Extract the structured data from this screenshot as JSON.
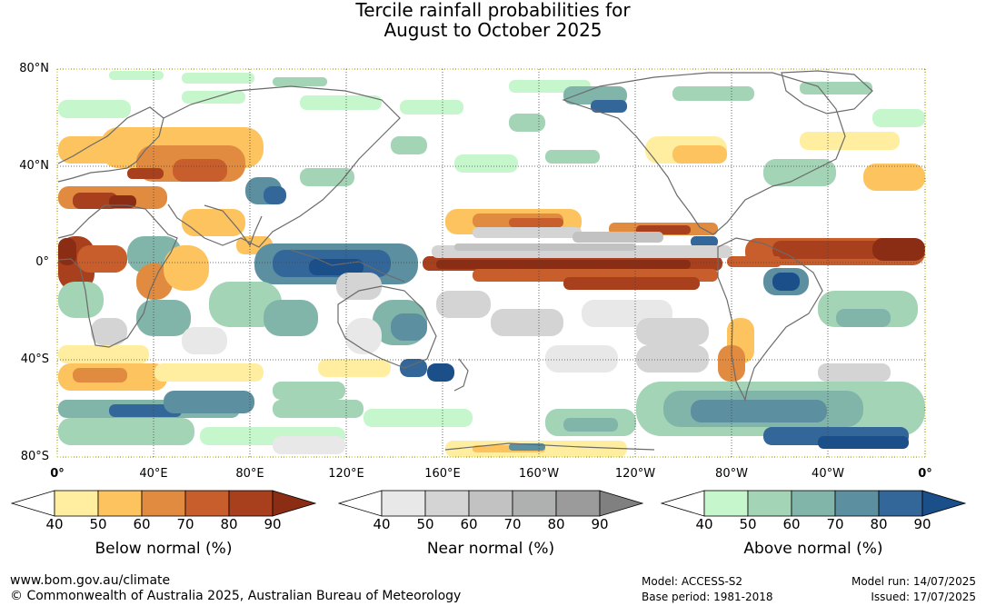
{
  "title": {
    "line1": "Tercile rainfall probabilities for",
    "line2": "August to October 2025"
  },
  "map": {
    "lat_labels": [
      "80°N",
      "40°N",
      "0°",
      "40°S",
      "80°S"
    ],
    "lon_labels": [
      "0°",
      "40°E",
      "80°E",
      "120°E",
      "160°E",
      "160°W",
      "120°W",
      "80°W",
      "40°W",
      "0°"
    ],
    "ocean_color": "#ffffff",
    "coastline_color": "#6b6b6b"
  },
  "legends": [
    {
      "label": "Below normal (%)",
      "ticks": [
        "40",
        "50",
        "60",
        "70",
        "80",
        "90"
      ],
      "colors": [
        "#ffeea0",
        "#fdc35f",
        "#e08b40",
        "#c85e2c",
        "#a8401e",
        "#8a2d14"
      ]
    },
    {
      "label": "Near normal (%)",
      "ticks": [
        "40",
        "50",
        "60",
        "70",
        "80",
        "90"
      ],
      "colors": [
        "#e8e8e8",
        "#d4d4d4",
        "#c2c2c2",
        "#afb1b0",
        "#9b9b9b",
        "#808080"
      ]
    },
    {
      "label": "Above normal (%)",
      "ticks": [
        "40",
        "50",
        "60",
        "70",
        "80",
        "90"
      ],
      "colors": [
        "#c6f7cc",
        "#a3d4b5",
        "#82b5a9",
        "#5c8fa0",
        "#336699",
        "#1a4f8a"
      ]
    }
  ],
  "footer": {
    "website": "www.bom.gov.au/climate",
    "copyright": "© Commonwealth of Australia 2025, Australian Bureau of Meteorology",
    "model": "Model: ACCESS-S2",
    "base_period": "Base period: 1981-2018",
    "model_run": "Model run: 14/07/2025",
    "issued": "Issued: 17/07/2025"
  }
}
